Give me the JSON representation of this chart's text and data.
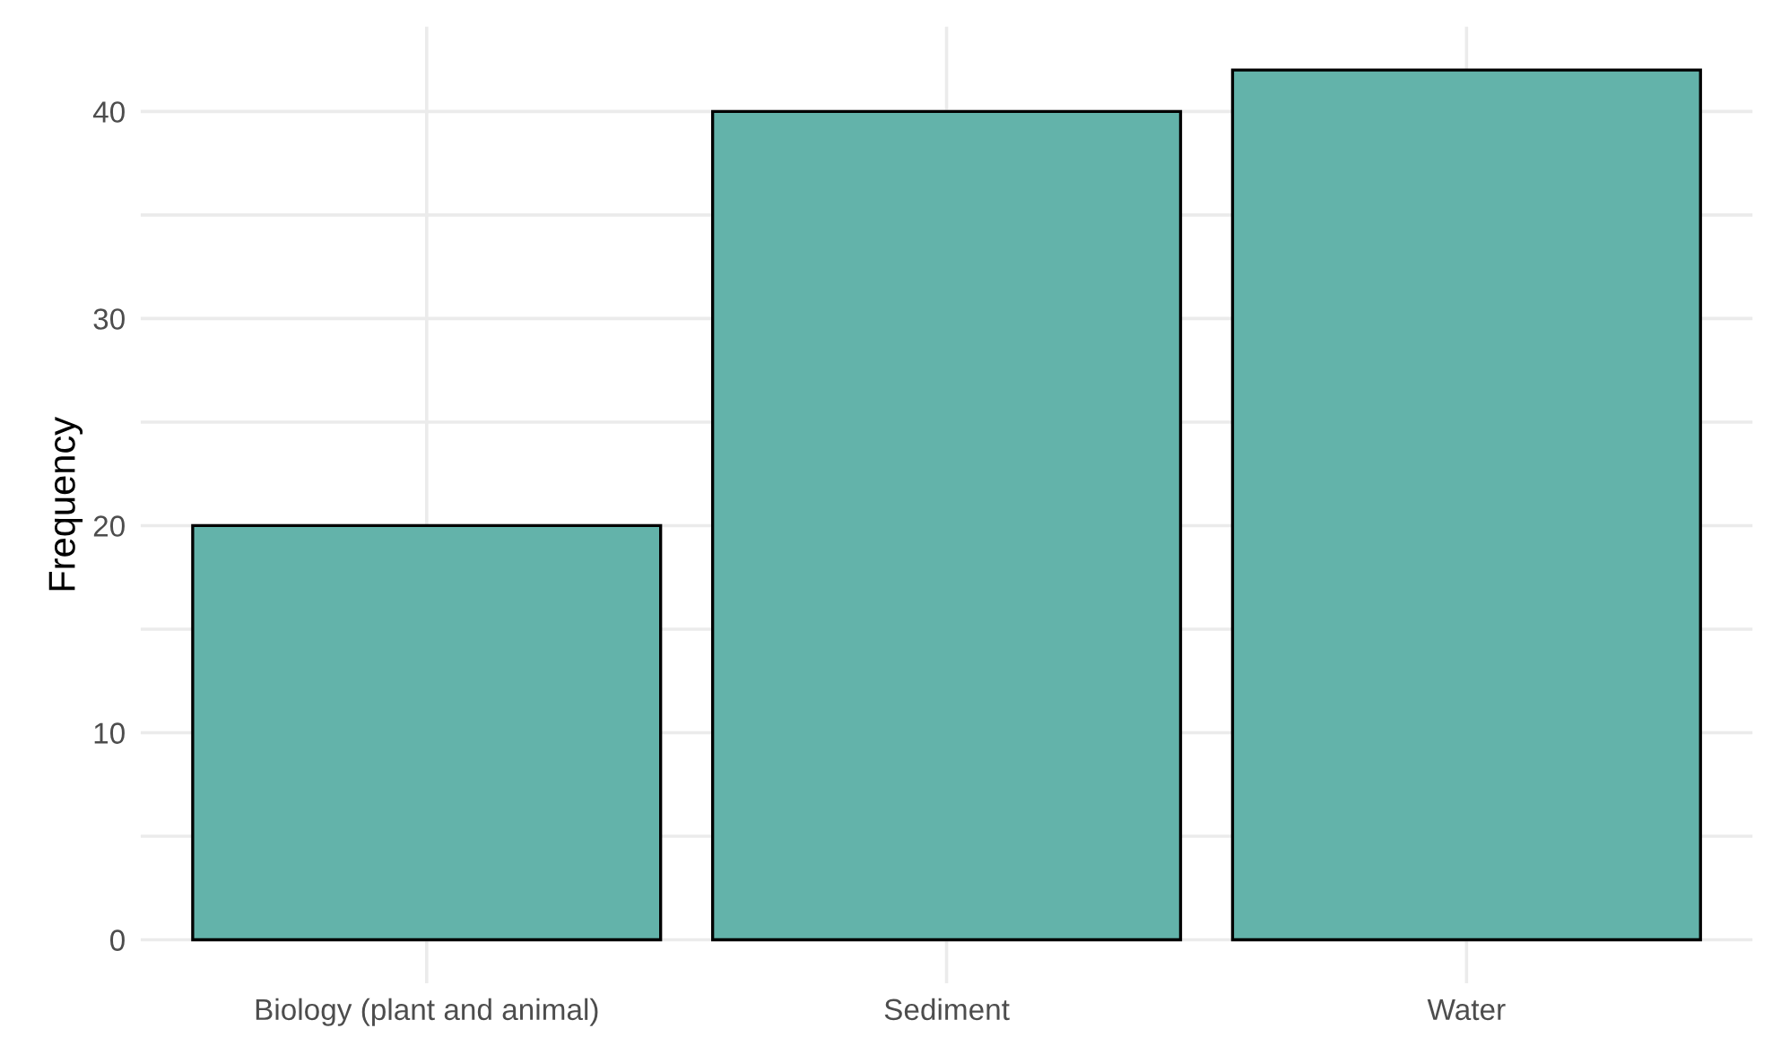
{
  "chart_data": {
    "type": "bar",
    "ylabel": "Frequency",
    "categories": [
      "Biology (plant and animal)",
      "Sediment",
      "Water"
    ],
    "values": [
      20,
      40,
      42
    ],
    "color": "#63b3aa",
    "ylim": [
      -2.1,
      44.1
    ],
    "yticks": [
      0,
      {
        "value": 5,
        "label": null
      },
      10,
      {
        "value": 15,
        "label": null
      },
      20,
      {
        "value": 25,
        "label": null
      },
      30,
      {
        "value": 35,
        "label": null
      },
      40
    ],
    "grid": true,
    "legend": false
  }
}
